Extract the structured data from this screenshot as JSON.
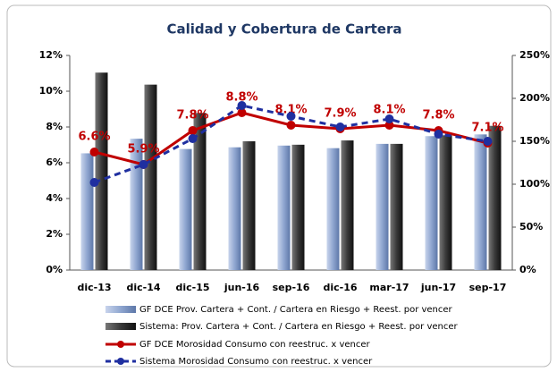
{
  "chart_data": {
    "type": "bar-line",
    "title": "Calidad y Cobertura de Cartera",
    "categories": [
      "dic-13",
      "dic-14",
      "dic-15",
      "jun-16",
      "sep-16",
      "dic-16",
      "mar-17",
      "jun-17",
      "sep-17"
    ],
    "series": [
      {
        "name": "GF DCE Prov. Cartera + Cont. / Cartera en Riesgo + Reest. por vencer",
        "color": "#8fa6d0",
        "kind": "bar",
        "axis": "y2",
        "values": [
          136,
          153,
          141,
          143,
          145,
          142,
          147,
          156,
          158
        ]
      },
      {
        "name": "Sistema: Prov. Cartera + Cont. / Cartera en Riesgo + Reest. por vencer",
        "color": "#3a3a3a",
        "kind": "bar",
        "axis": "y2",
        "values": [
          230,
          216,
          183,
          150,
          146,
          151,
          147,
          157,
          168
        ]
      },
      {
        "name": "GF DCE Morosidad Consumo con reestruc. x vencer",
        "color": "#c00000",
        "kind": "line",
        "values": [
          6.6,
          5.9,
          7.8,
          8.8,
          8.1,
          7.9,
          8.1,
          7.8,
          7.1
        ],
        "value_labels": [
          "6.6%",
          "5.9%",
          "7.8%",
          "8.8%",
          "8.1%",
          "7.9%",
          "8.1%",
          "7.8%",
          "7.1%"
        ]
      },
      {
        "name": "Sistema Morosidad Consumo con reestruc. x vencer",
        "color": "#1f2fa0",
        "kind": "dashed",
        "values": [
          4.9,
          5.9,
          7.35,
          9.2,
          8.6,
          8.0,
          8.45,
          7.6,
          7.2
        ]
      }
    ],
    "ylim": [
      0,
      12
    ],
    "yticks": [
      {
        "value": 0,
        "label": "0%"
      },
      {
        "value": 2,
        "label": "2%"
      },
      {
        "value": 4,
        "label": "4%"
      },
      {
        "value": 6,
        "label": "6%"
      },
      {
        "value": 8,
        "label": "8%"
      },
      {
        "value": 10,
        "label": "10%"
      },
      {
        "value": 12,
        "label": "12%"
      }
    ],
    "y2lim": [
      0,
      250
    ],
    "y2ticks": [
      {
        "value": 0,
        "label": "0%"
      },
      {
        "value": 50,
        "label": "50%"
      },
      {
        "value": 100,
        "label": "100%"
      },
      {
        "value": 150,
        "label": "150%"
      },
      {
        "value": 200,
        "label": "200%"
      },
      {
        "value": 250,
        "label": "250%"
      }
    ]
  }
}
